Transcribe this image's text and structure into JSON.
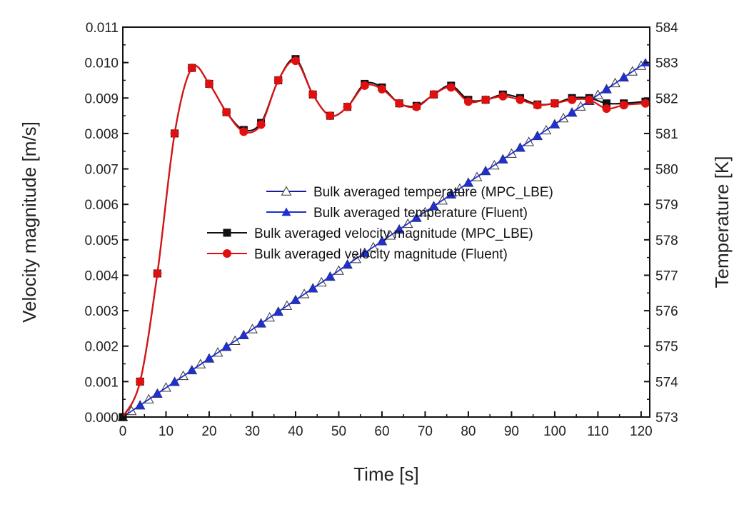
{
  "chart_data": {
    "type": "line",
    "xlabel": "Time [s]",
    "ylabel": "Velocity magnitude [m/s]",
    "y2label": "Temperature [K]",
    "xlim": [
      0,
      122
    ],
    "ylim": [
      0,
      0.011
    ],
    "y2lim": [
      573,
      584
    ],
    "xticks": [
      "0",
      "10",
      "20",
      "30",
      "40",
      "50",
      "60",
      "70",
      "80",
      "90",
      "100",
      "110",
      "120"
    ],
    "yticks": [
      "0.000",
      "0.001",
      "0.002",
      "0.003",
      "0.004",
      "0.005",
      "0.006",
      "0.007",
      "0.008",
      "0.009",
      "0.010",
      "0.011"
    ],
    "y2ticks": [
      "573",
      "574",
      "575",
      "576",
      "577",
      "578",
      "579",
      "580",
      "581",
      "582",
      "583",
      "584"
    ],
    "grid": false,
    "legend_position": "center-right",
    "series": [
      {
        "name": "Bulk averaged temperature (MPC_LBE)",
        "axis": "right",
        "color": "#1a1a9a",
        "marker": "open-triangle",
        "x": [
          0,
          2,
          4,
          6,
          8,
          10,
          12,
          14,
          16,
          18,
          20,
          22,
          24,
          26,
          28,
          30,
          32,
          34,
          36,
          38,
          40,
          42,
          44,
          46,
          48,
          50,
          52,
          54,
          56,
          58,
          60,
          62,
          64,
          66,
          68,
          70,
          72,
          74,
          76,
          78,
          80,
          82,
          84,
          86,
          88,
          90,
          92,
          94,
          96,
          98,
          100,
          102,
          104,
          106,
          108,
          110,
          112,
          114,
          116,
          118,
          120
        ],
        "y": [
          573,
          573.17,
          573.33,
          573.5,
          573.66,
          573.83,
          573.99,
          574.16,
          574.32,
          574.49,
          574.65,
          574.82,
          574.98,
          575.15,
          575.31,
          575.48,
          575.64,
          575.81,
          575.97,
          576.14,
          576.3,
          576.47,
          576.63,
          576.8,
          576.96,
          577.13,
          577.3,
          577.46,
          577.63,
          577.79,
          577.96,
          578.12,
          578.29,
          578.45,
          578.62,
          578.78,
          578.95,
          579.11,
          579.28,
          579.44,
          579.61,
          579.77,
          579.94,
          580.1,
          580.27,
          580.43,
          580.6,
          580.76,
          580.93,
          581.09,
          581.26,
          581.43,
          581.59,
          581.76,
          581.92,
          582.09,
          582.25,
          582.42,
          582.58,
          582.75,
          582.91
        ]
      },
      {
        "name": "Bulk averaged temperature (Fluent)",
        "axis": "right",
        "color": "#1f2fd0",
        "marker": "filled-triangle",
        "x": [
          0,
          4,
          8,
          12,
          16,
          20,
          24,
          28,
          32,
          36,
          40,
          44,
          48,
          52,
          56,
          60,
          64,
          68,
          72,
          76,
          80,
          84,
          88,
          92,
          96,
          100,
          104,
          108,
          112,
          116,
          121
        ],
        "y": [
          573,
          573.33,
          573.66,
          573.99,
          574.32,
          574.65,
          574.98,
          575.31,
          575.64,
          575.97,
          576.3,
          576.63,
          576.96,
          577.3,
          577.63,
          577.96,
          578.29,
          578.62,
          578.95,
          579.28,
          579.61,
          579.94,
          580.27,
          580.6,
          580.93,
          581.26,
          581.59,
          581.92,
          582.25,
          582.58,
          583.0
        ]
      },
      {
        "name": "Bulk averaged velocity magnitude (MPC_LBE)",
        "axis": "left",
        "color": "#111111",
        "marker": "filled-square",
        "x": [
          0,
          4,
          8,
          12,
          16,
          20,
          24,
          28,
          32,
          36,
          40,
          44,
          48,
          52,
          56,
          60,
          64,
          68,
          72,
          76,
          80,
          84,
          88,
          92,
          96,
          100,
          104,
          108,
          112,
          116,
          121
        ],
        "y": [
          0,
          0.001,
          0.00405,
          0.008,
          0.00985,
          0.0094,
          0.0086,
          0.0081,
          0.0083,
          0.0095,
          0.0101,
          0.0091,
          0.0085,
          0.00875,
          0.0094,
          0.0093,
          0.00885,
          0.00878,
          0.0091,
          0.00935,
          0.00895,
          0.00895,
          0.0091,
          0.009,
          0.00882,
          0.00885,
          0.009,
          0.009,
          0.00885,
          0.00885,
          0.0089
        ]
      },
      {
        "name": "Bulk averaged velocity magnitude (Fluent)",
        "axis": "left",
        "color": "#e01010",
        "marker": "filled-circle",
        "x": [
          0,
          4,
          8,
          12,
          16,
          20,
          24,
          28,
          32,
          36,
          40,
          44,
          48,
          52,
          56,
          60,
          64,
          68,
          72,
          76,
          80,
          84,
          88,
          92,
          96,
          100,
          104,
          108,
          112,
          116,
          121
        ],
        "y": [
          0,
          0.001,
          0.00405,
          0.008,
          0.00985,
          0.0094,
          0.0086,
          0.00805,
          0.00825,
          0.0095,
          0.01005,
          0.0091,
          0.0085,
          0.00875,
          0.00935,
          0.00925,
          0.00885,
          0.00875,
          0.0091,
          0.0093,
          0.0089,
          0.00895,
          0.00905,
          0.00895,
          0.0088,
          0.00885,
          0.00895,
          0.00895,
          0.0087,
          0.0088,
          0.00885
        ]
      }
    ]
  }
}
